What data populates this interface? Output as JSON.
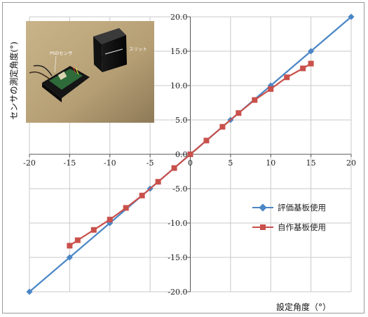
{
  "chart_data": {
    "type": "line",
    "xlabel": "設定角度（°）",
    "ylabel": "センサの測定角度(°)",
    "xlim": [
      -20,
      20
    ],
    "ylim": [
      -20,
      20
    ],
    "x_ticks": [
      -20,
      -15,
      -10,
      -5,
      0,
      5,
      10,
      15,
      20
    ],
    "x_tick_labels": [
      "-20",
      "-15",
      "-10",
      "-5",
      "0",
      "5",
      "10",
      "15",
      "20"
    ],
    "y_ticks": [
      -20,
      -15,
      -10,
      -5,
      0,
      5,
      10,
      15,
      20
    ],
    "y_tick_labels": [
      "-20.0",
      "-15.0",
      "-10.0",
      "-5.0",
      "0.0",
      "5.0",
      "10.0",
      "15.0",
      "20.0"
    ],
    "grid": true,
    "legend_position": "right",
    "series": [
      {
        "name": "評価基板使用",
        "marker": "diamond",
        "color": "#4a86c5",
        "points": [
          [
            -20,
            -20
          ],
          [
            -15,
            -15
          ],
          [
            -10,
            -10
          ],
          [
            -5,
            -5
          ],
          [
            0,
            0
          ],
          [
            5,
            5
          ],
          [
            10,
            10
          ],
          [
            15,
            15
          ],
          [
            20,
            20
          ]
        ]
      },
      {
        "name": "自作基板使用",
        "marker": "square",
        "color": "#c9504b",
        "points": [
          [
            -15,
            -13.3
          ],
          [
            -14,
            -12.5
          ],
          [
            -12,
            -11
          ],
          [
            -10,
            -9.5
          ],
          [
            -8,
            -7.8
          ],
          [
            -6,
            -6
          ],
          [
            -4,
            -4
          ],
          [
            -2,
            -2
          ],
          [
            0,
            0
          ],
          [
            2,
            2
          ],
          [
            4,
            4
          ],
          [
            6,
            6
          ],
          [
            8,
            7.9
          ],
          [
            10,
            9.5
          ],
          [
            12,
            11.2
          ],
          [
            14,
            12.5
          ],
          [
            15,
            13.2
          ]
        ]
      }
    ]
  },
  "inset_photo": {
    "label_sensor": "PSDセンサ",
    "label_slit": "スリット"
  }
}
